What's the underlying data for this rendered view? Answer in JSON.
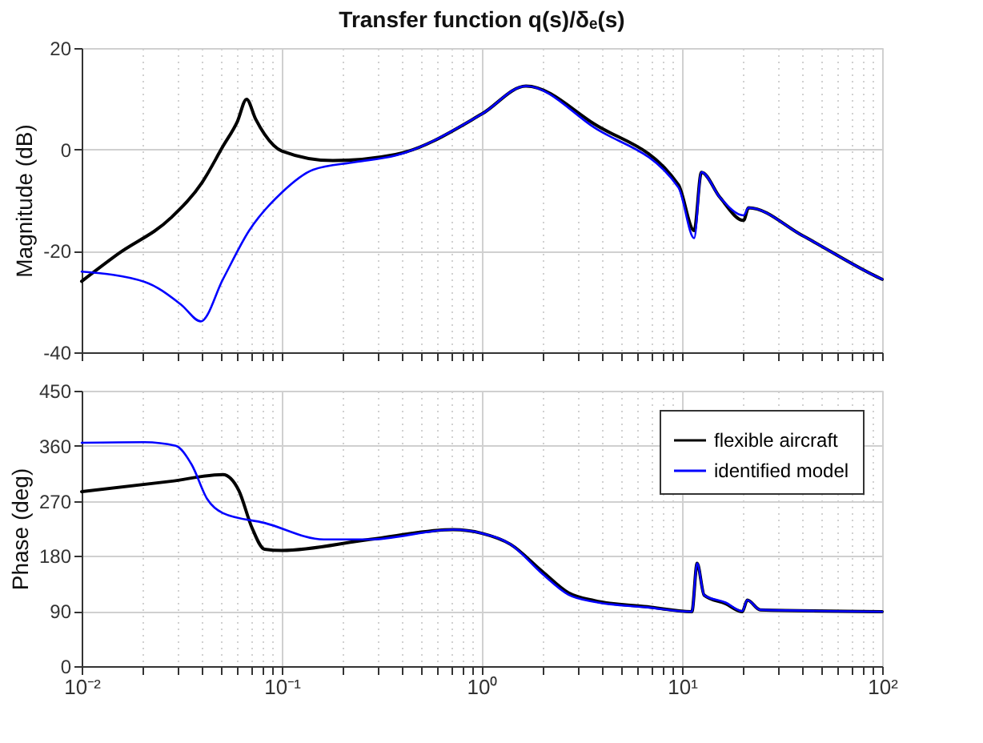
{
  "chart_data": [
    {
      "type": "line",
      "title": "Transfer function q(s)/δₑ(s)",
      "ylabel": "Magnitude (dB)",
      "log": "x",
      "grid": true,
      "legend": false,
      "tick_labels": "y",
      "xlim": [
        0.01,
        100
      ],
      "xticks": [
        {
          "value": 0.01,
          "label": null
        },
        {
          "value": 0.02,
          "label": null
        },
        {
          "value": 0.03,
          "label": null
        },
        {
          "value": 0.04,
          "label": null
        },
        {
          "value": 0.05,
          "label": null
        },
        {
          "value": 0.06,
          "label": null
        },
        {
          "value": 0.07,
          "label": null
        },
        {
          "value": 0.08,
          "label": null
        },
        {
          "value": 0.09,
          "label": null
        },
        {
          "value": 0.1,
          "label": null
        },
        {
          "value": 0.2,
          "label": null
        },
        {
          "value": 0.3,
          "label": null
        },
        {
          "value": 0.4,
          "label": null
        },
        {
          "value": 0.5,
          "label": null
        },
        {
          "value": 0.6,
          "label": null
        },
        {
          "value": 0.7,
          "label": null
        },
        {
          "value": 0.8,
          "label": null
        },
        {
          "value": 0.9,
          "label": null
        },
        {
          "value": 1,
          "label": null
        },
        {
          "value": 2,
          "label": null
        },
        {
          "value": 3,
          "label": null
        },
        {
          "value": 4,
          "label": null
        },
        {
          "value": 5,
          "label": null
        },
        {
          "value": 6,
          "label": null
        },
        {
          "value": 7,
          "label": null
        },
        {
          "value": 8,
          "label": null
        },
        {
          "value": 9,
          "label": null
        },
        {
          "value": 10,
          "label": null
        },
        {
          "value": 20,
          "label": null
        },
        {
          "value": 30,
          "label": null
        },
        {
          "value": 40,
          "label": null
        },
        {
          "value": 50,
          "label": null
        },
        {
          "value": 60,
          "label": null
        },
        {
          "value": 70,
          "label": null
        },
        {
          "value": 80,
          "label": null
        },
        {
          "value": 90,
          "label": null
        },
        {
          "value": 100,
          "label": null
        }
      ],
      "ylim": [
        -40,
        20
      ],
      "yticks": [
        -40,
        -20,
        0,
        20
      ],
      "series": [
        {
          "color": "#000000",
          "x": [
            0.01,
            0.0152,
            0.0279,
            0.04,
            0.0508,
            0.06,
            0.0667,
            0.074,
            0.082,
            0.1,
            0.18,
            0.37,
            1,
            1.66,
            3.65,
            9.6,
            11.5,
            12.5,
            15.5,
            20.3,
            21.5,
            40,
            94,
            100
          ],
          "values": [
            -26,
            -20.6,
            -13.5,
            -6.5,
            0.6,
            5.5,
            9.9,
            6,
            3,
            -0.3,
            -2.2,
            -1,
            7,
            12.5,
            5,
            -7,
            -16,
            -4.5,
            -9.5,
            -14,
            -11.5,
            -17,
            -25.1,
            -25.6
          ]
        },
        {
          "color": "#0000ff",
          "x": [
            0.01,
            0.0206,
            0.0314,
            0.0394,
            0.0508,
            0.0687,
            0.1,
            0.1435,
            0.232,
            0.37,
            1,
            1.66,
            3.65,
            9.6,
            11.5,
            12.5,
            15.5,
            20.3,
            21.5,
            40,
            94,
            100
          ],
          "values": [
            -24.1,
            -26.1,
            -30.6,
            -33.9,
            -25.6,
            -16,
            -8.5,
            -4,
            -2.5,
            -1.2,
            7,
            12.5,
            4.3,
            -7.5,
            -17.5,
            -4.5,
            -9.5,
            -13,
            -11.5,
            -17,
            -25.1,
            -25.6
          ]
        }
      ]
    },
    {
      "type": "line",
      "ylabel": "Phase (deg)",
      "log": "x",
      "grid": true,
      "legend": "top right",
      "xlim": [
        0.01,
        100
      ],
      "xticks": [
        {
          "value": 0.01,
          "label": "10⁻²"
        },
        {
          "value": 0.02,
          "label": null
        },
        {
          "value": 0.03,
          "label": null
        },
        {
          "value": 0.04,
          "label": null
        },
        {
          "value": 0.05,
          "label": null
        },
        {
          "value": 0.06,
          "label": null
        },
        {
          "value": 0.07,
          "label": null
        },
        {
          "value": 0.08,
          "label": null
        },
        {
          "value": 0.09,
          "label": null
        },
        {
          "value": 0.1,
          "label": "10⁻¹"
        },
        {
          "value": 0.2,
          "label": null
        },
        {
          "value": 0.3,
          "label": null
        },
        {
          "value": 0.4,
          "label": null
        },
        {
          "value": 0.5,
          "label": null
        },
        {
          "value": 0.6,
          "label": null
        },
        {
          "value": 0.7,
          "label": null
        },
        {
          "value": 0.8,
          "label": null
        },
        {
          "value": 0.9,
          "label": null
        },
        {
          "value": 1,
          "label": "10⁰"
        },
        {
          "value": 2,
          "label": null
        },
        {
          "value": 3,
          "label": null
        },
        {
          "value": 4,
          "label": null
        },
        {
          "value": 5,
          "label": null
        },
        {
          "value": 6,
          "label": null
        },
        {
          "value": 7,
          "label": null
        },
        {
          "value": 8,
          "label": null
        },
        {
          "value": 9,
          "label": null
        },
        {
          "value": 10,
          "label": "10¹"
        },
        {
          "value": 20,
          "label": null
        },
        {
          "value": 30,
          "label": null
        },
        {
          "value": 40,
          "label": null
        },
        {
          "value": 50,
          "label": null
        },
        {
          "value": 60,
          "label": null
        },
        {
          "value": 70,
          "label": null
        },
        {
          "value": 80,
          "label": null
        },
        {
          "value": 90,
          "label": null
        },
        {
          "value": 100,
          "label": "10²"
        }
      ],
      "ylim": [
        0,
        450
      ],
      "yticks": [
        0,
        90,
        180,
        270,
        360,
        450
      ],
      "series": [
        {
          "name": "flexible aircraft",
          "color": "#000000",
          "x": [
            0.01,
            0.0279,
            0.0508,
            0.061,
            0.071,
            0.082,
            0.1,
            0.275,
            0.72,
            1,
            1.39,
            2,
            2.7,
            3.65,
            6.7,
            11.2,
            11.9,
            12.9,
            16.5,
            20,
            21.2,
            24.6,
            100
          ],
          "values": [
            285,
            302,
            313,
            287,
            226,
            191,
            189,
            207,
            223,
            217,
            199,
            155,
            120,
            107,
            97,
            89,
            168,
            116,
            102,
            89,
            108,
            92,
            89
          ]
        },
        {
          "name": "identified model",
          "color": "#0000ff",
          "x": [
            0.01,
            0.0206,
            0.0295,
            0.0355,
            0.0424,
            0.0508,
            0.082,
            0.162,
            0.275,
            0.72,
            1,
            1.39,
            2,
            2.7,
            3.65,
            6.7,
            11.2,
            11.9,
            12.9,
            16.5,
            20,
            21.2,
            24.6,
            100
          ],
          "values": [
            365,
            366,
            360,
            329,
            273,
            250,
            234,
            207,
            207,
            223,
            217,
            199,
            151,
            117,
            105,
            96,
            89,
            168,
            116,
            104,
            90,
            108,
            92,
            89
          ]
        }
      ]
    }
  ]
}
